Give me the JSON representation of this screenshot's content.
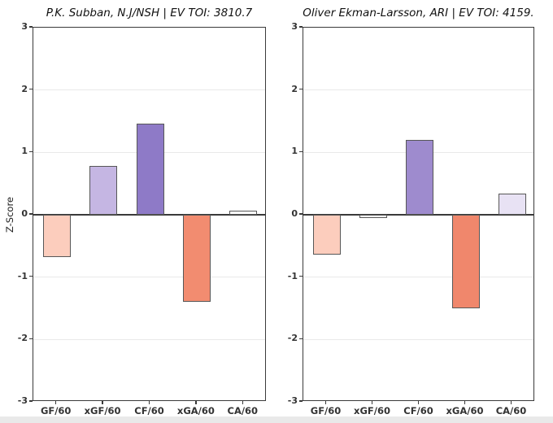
{
  "page": {
    "background": "#ffffff",
    "bottom_strip_color": "#e9e9e9"
  },
  "axis_style": {
    "spine_color": "#3a3a3a",
    "grid_color": "#e9e9e9",
    "zero_line_color": "#3a3a3a",
    "bar_edge_color": "#575757",
    "tick_label_color": "#333333",
    "title_color": "#111111"
  },
  "chart_data": [
    {
      "type": "bar",
      "title": "P.K. Subban, N.J/NSH  |  EV TOI: 3810.7",
      "ylabel": "Z-Score",
      "categories": [
        "GF/60",
        "xGF/60",
        "CF/60",
        "xGA/60",
        "CA/60"
      ],
      "values": [
        -0.68,
        0.78,
        1.46,
        -1.4,
        0.06
      ],
      "bar_colors": [
        "#fccdbd",
        "#c5b6e3",
        "#8e7ac7",
        "#f28c70",
        "#ffffff"
      ],
      "ylim": [
        -3,
        3
      ],
      "yticks": [
        3,
        2,
        1,
        0,
        -1,
        -2,
        -3
      ],
      "grid": "horizontal-at-integers",
      "legend": "none"
    },
    {
      "type": "bar",
      "title": "Oliver Ekman-Larsson, ARI  |  EV TOI: 4159.",
      "ylabel": "",
      "categories": [
        "GF/60",
        "xGF/60",
        "CF/60",
        "xGA/60",
        "CA/60"
      ],
      "values": [
        -0.64,
        -0.05,
        1.2,
        -1.5,
        0.34
      ],
      "bar_colors": [
        "#fccdbd",
        "#fdfdfd",
        "#9e8bce",
        "#f0876c",
        "#e8e2f4"
      ],
      "ylim": [
        -3,
        3
      ],
      "yticks": [
        3,
        2,
        1,
        0,
        -1,
        -2,
        -3
      ],
      "grid": "horizontal-at-integers",
      "legend": "none"
    }
  ],
  "layout_note": "two z-score bar panels side by side"
}
